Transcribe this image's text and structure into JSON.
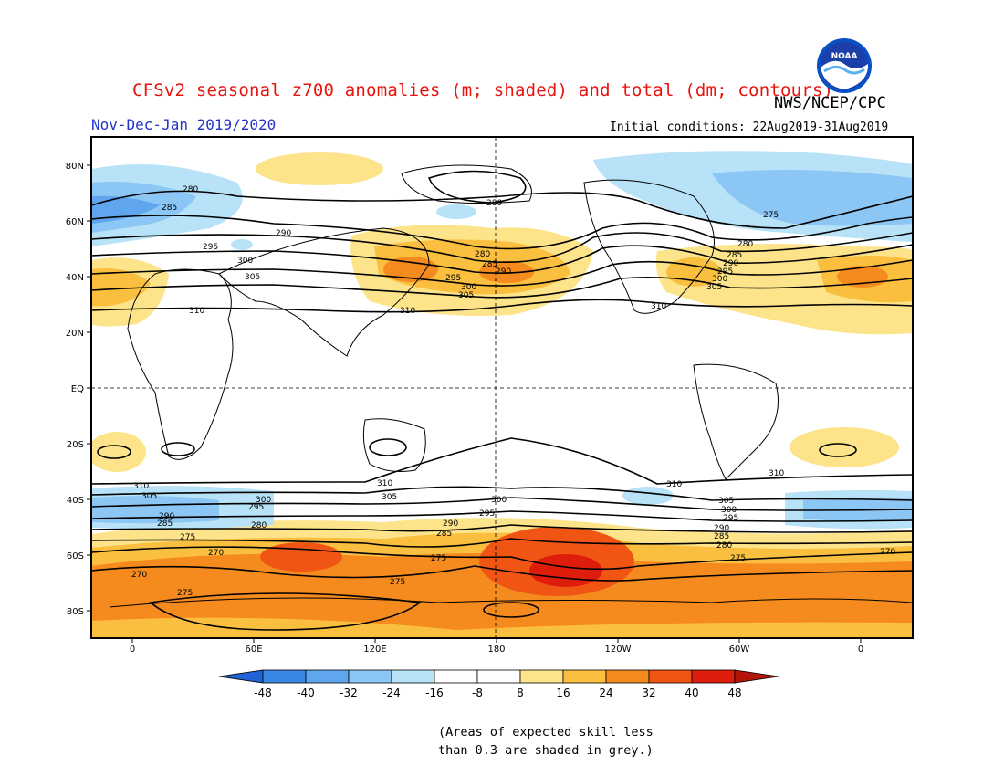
{
  "header": {
    "title": "CFSv2 seasonal z700 anomalies (m; shaded) and total (dm; contours)",
    "agency": "NWS/NCEP/CPC",
    "period": "Nov-Dec-Jan 2019/2020",
    "initial_conditions": "Initial conditions: 22Aug2019-31Aug2019",
    "logo_text": "NOAA"
  },
  "map": {
    "lat_labels": [
      "80N",
      "60N",
      "40N",
      "20N",
      "EQ",
      "20S",
      "40S",
      "60S",
      "80S"
    ],
    "lon_labels": [
      "0",
      "60E",
      "120E",
      "180",
      "120W",
      "60W",
      "0"
    ],
    "contour_labels": [
      "275",
      "280",
      "285",
      "290",
      "295",
      "300",
      "305",
      "310",
      "270"
    ]
  },
  "colorbar": {
    "ticks": [
      "-48",
      "-40",
      "-32",
      "-24",
      "-16",
      "-8",
      "8",
      "16",
      "24",
      "32",
      "40",
      "48"
    ],
    "colors": [
      "#1f63d6",
      "#3b87e6",
      "#5fa6ef",
      "#8cc6f5",
      "#b7e2f7",
      "#ffffff",
      "#fde48a",
      "#fbbf3f",
      "#f58a1e",
      "#f05514",
      "#de1d0c",
      "#b3150b"
    ]
  },
  "footnote": {
    "line1": "(Areas of expected skill less",
    "line2": "than 0.3 are shaded in grey.)"
  },
  "colors": {
    "title": "#e8140f",
    "period": "#2233cc"
  }
}
